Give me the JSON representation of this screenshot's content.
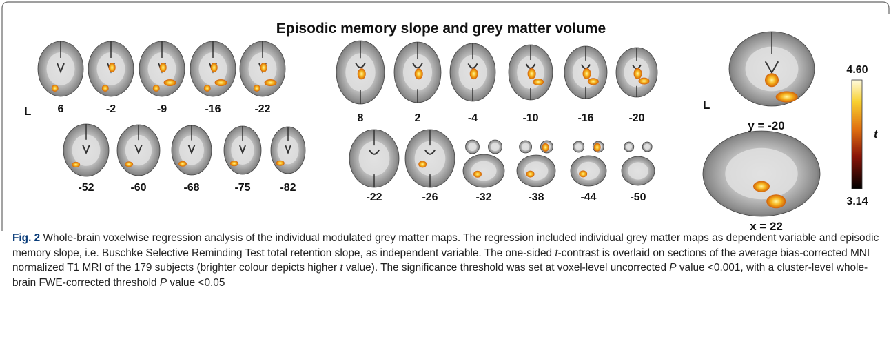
{
  "figure": {
    "title": "Episodic memory slope and grey matter volume",
    "coronal": {
      "side_label": "L",
      "row1": [
        "6",
        "-2",
        "-9",
        "-16",
        "-22"
      ],
      "row2": [
        "-52",
        "-60",
        "-68",
        "-75",
        "-82"
      ]
    },
    "axial": {
      "row1": [
        "8",
        "2",
        "-4",
        "-10",
        "-16",
        "-20"
      ],
      "row2": [
        "-22",
        "-26",
        "-32",
        "-38",
        "-44",
        "-50"
      ]
    },
    "large": {
      "side_label": "L",
      "coronal_label": "y = -20",
      "sagittal_label": "x = 22"
    },
    "colorbar": {
      "max_label": "4.60",
      "min_label": "3.14",
      "axis_label": "t"
    }
  },
  "caption": {
    "label": "Fig. 2",
    "parts": [
      " Whole-brain voxelwise regression analysis of the individual modulated grey matter maps. The regression included individual grey matter maps as dependent variable and episodic memory slope, i.e. Buschke Selective Reminding Test total retention slope, as independent variable. The one-sided ",
      "t",
      "-contrast is overlaid on sections of the average bias-corrected MNI normalized T1 MRI of the 179 subjects (brighter colour depicts higher ",
      "t",
      " value). The significance threshold was set at voxel-level uncorrected ",
      "P",
      " value <0.001, with a cluster-level whole-brain FWE-corrected threshold ",
      "P",
      " value <0.05"
    ]
  }
}
